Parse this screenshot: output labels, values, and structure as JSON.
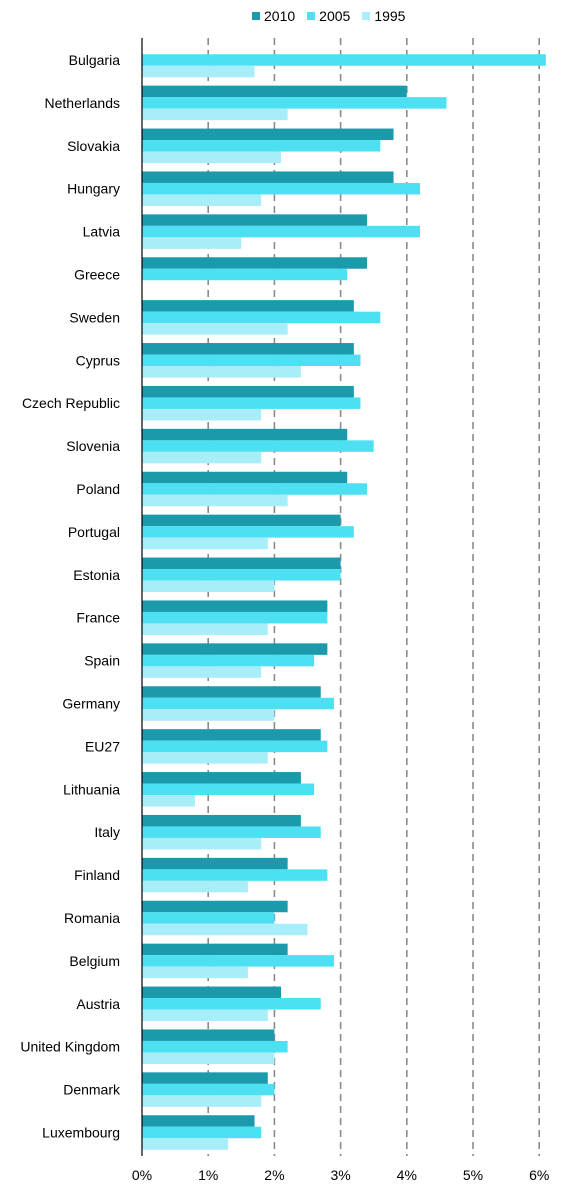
{
  "chart_data": {
    "type": "bar",
    "orientation": "horizontal",
    "categories": [
      "Bulgaria",
      "Netherlands",
      "Slovakia",
      "Hungary",
      "Latvia",
      "Greece",
      "Sweden",
      "Cyprus",
      "Czech Republic",
      "Slovenia",
      "Poland",
      "Portugal",
      "Estonia",
      "France",
      "Spain",
      "Germany",
      "EU27",
      "Lithuania",
      "Italy",
      "Finland",
      "Romania",
      "Belgium",
      "Austria",
      "United Kingdom",
      "Denmark",
      "Luxembourg"
    ],
    "series": [
      {
        "name": "2010",
        "color": "#1a9aaa",
        "values": [
          null,
          4.0,
          3.8,
          3.8,
          3.4,
          3.4,
          3.2,
          3.2,
          3.2,
          3.1,
          3.1,
          3.0,
          3.0,
          2.8,
          2.8,
          2.7,
          2.7,
          2.4,
          2.4,
          2.2,
          2.2,
          2.2,
          2.1,
          2.0,
          1.9,
          1.7
        ]
      },
      {
        "name": "2005",
        "color": "#4de0f2",
        "values": [
          6.1,
          4.6,
          3.6,
          4.2,
          4.2,
          3.1,
          3.6,
          3.3,
          3.3,
          3.5,
          3.4,
          3.2,
          3.0,
          2.8,
          2.6,
          2.9,
          2.8,
          2.6,
          2.7,
          2.8,
          2.0,
          2.9,
          2.7,
          2.2,
          2.0,
          1.8
        ]
      },
      {
        "name": "1995",
        "color": "#a8eef8",
        "values": [
          1.7,
          2.2,
          2.1,
          1.8,
          1.5,
          null,
          2.2,
          2.4,
          1.8,
          1.8,
          2.2,
          1.9,
          2.0,
          1.9,
          1.8,
          2.0,
          1.9,
          0.8,
          1.8,
          1.6,
          2.5,
          1.6,
          1.9,
          2.0,
          1.8,
          1.3
        ]
      }
    ],
    "x_ticks": [
      "0%",
      "1%",
      "2%",
      "3%",
      "4%",
      "5%",
      "6%"
    ],
    "xlim": [
      0,
      6.4
    ],
    "grid": true,
    "legend_position": "top"
  }
}
